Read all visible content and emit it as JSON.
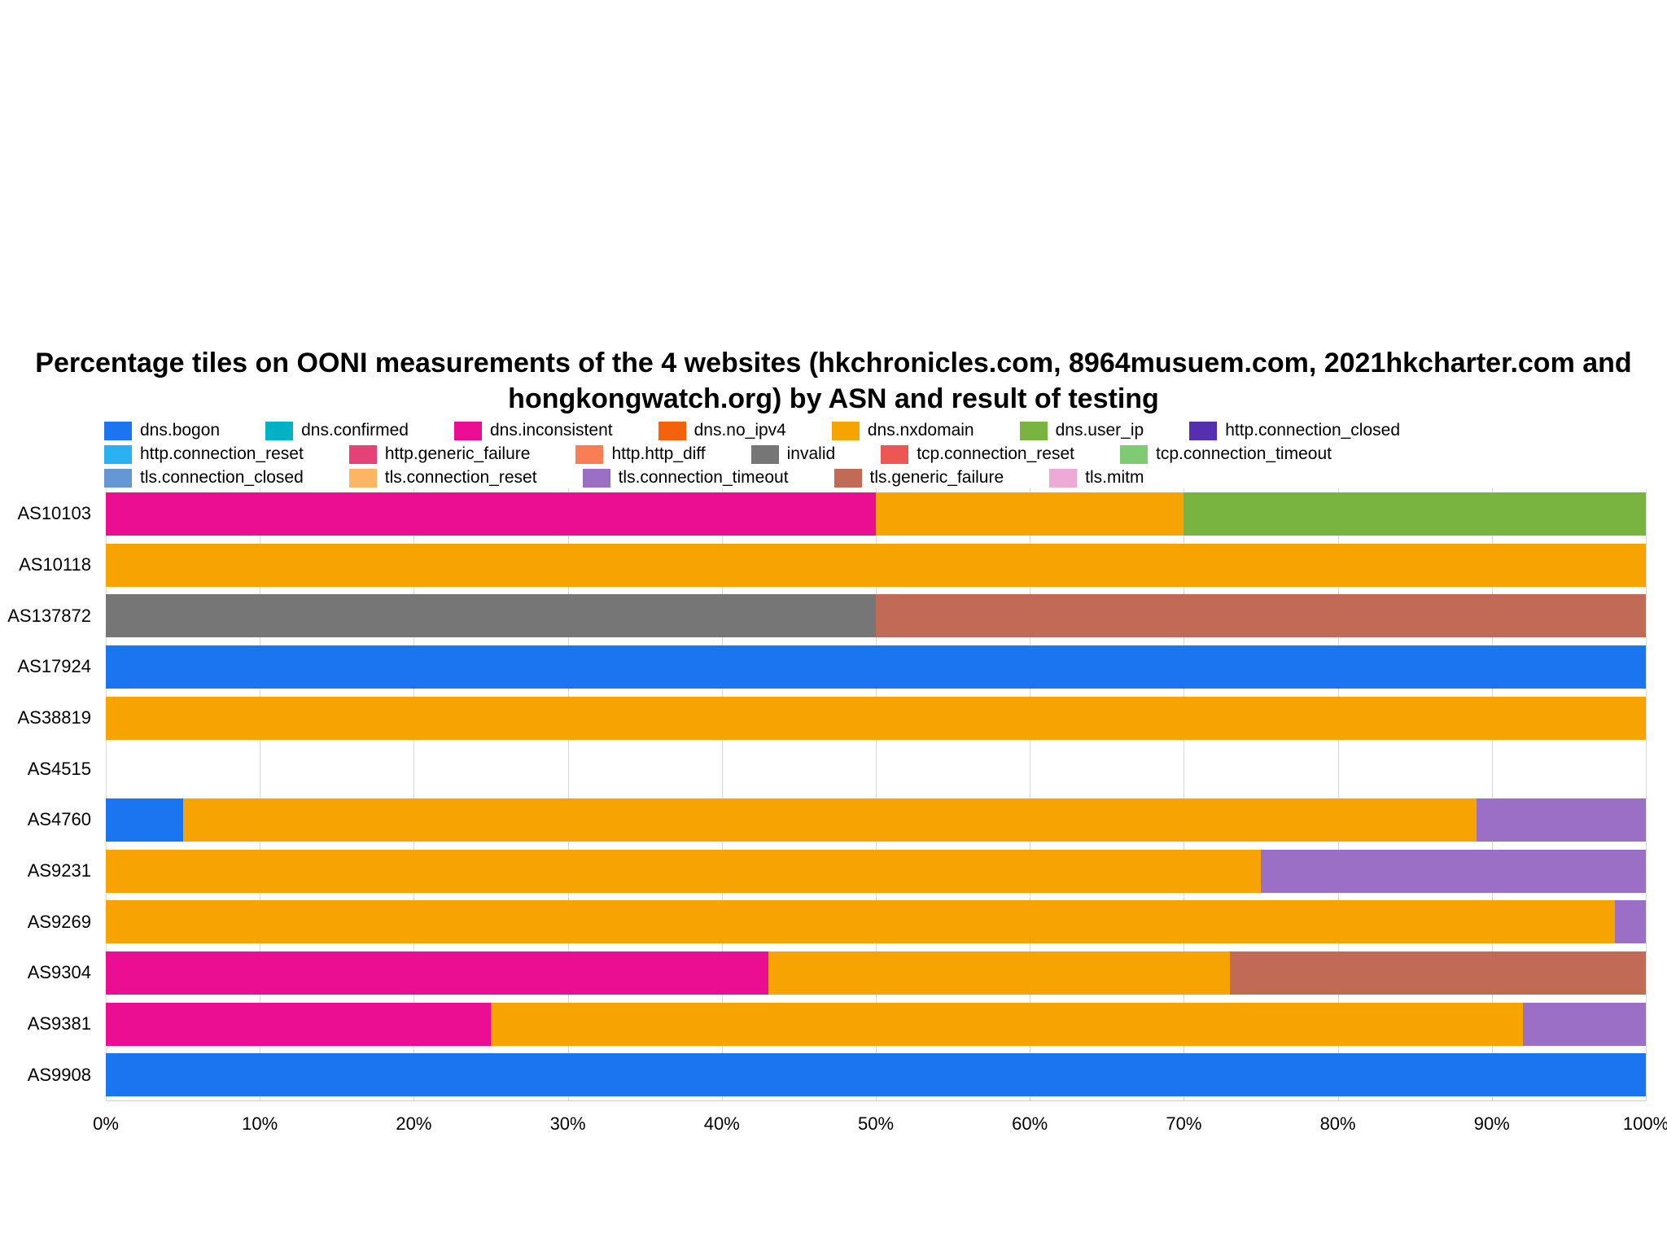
{
  "chart_data": {
    "type": "bar",
    "orientation": "horizontal",
    "stacked": true,
    "title": "Percentage tiles on OONI measurements of the 4 websites (hkchronicles.com, 8964musuem.com,  2021hkcharter.com and hongkongwatch.org) by ASN and result of testing",
    "title_lines": [
      "Percentage tiles on OONI measurements of the 4 websites (hkchronicles.com, 8964musuem.com,  2021hkcharter.com and",
      "hongkongwatch.org) by ASN and result of testing"
    ],
    "xlabel": "",
    "ylabel": "",
    "xlim": [
      0,
      100
    ],
    "grid": true,
    "legend_position": "top",
    "x_ticks": [
      "0%",
      "10%",
      "20%",
      "30%",
      "40%",
      "50%",
      "60%",
      "70%",
      "80%",
      "90%",
      "100%"
    ],
    "legend_rows": [
      [
        "dns.bogon",
        "dns.confirmed",
        "dns.inconsistent",
        "dns.no_ipv4",
        "dns.nxdomain",
        "dns.user_ip",
        "http.connection_closed"
      ],
      [
        "http.connection_reset",
        "http.generic_failure",
        "http.http_diff",
        "invalid",
        "tcp.connection_reset",
        "tcp.connection_timeout"
      ],
      [
        "tls.connection_closed",
        "tls.connection_reset",
        "tls.connection_timeout",
        "tls.generic_failure",
        "tls.mitm"
      ]
    ],
    "palette": {
      "dns.bogon": "#1b75f0",
      "dns.confirmed": "#00b2c3",
      "dns.inconsistent": "#eb0e92",
      "dns.no_ipv4": "#f4620b",
      "dns.nxdomain": "#f7a402",
      "dns.user_ip": "#79b441",
      "http.connection_closed": "#5430ae",
      "http.connection_reset": "#29b2f2",
      "http.generic_failure": "#e64277",
      "http.http_diff": "#f97d55",
      "invalid": "#767676",
      "tcp.connection_reset": "#ec5653",
      "tcp.connection_timeout": "#7ecb74",
      "tls.connection_closed": "#6497d3",
      "tls.connection_reset": "#fbb563",
      "tls.connection_timeout": "#9c6fc6",
      "tls.generic_failure": "#c16a55",
      "tls.mitm": "#edaad6"
    },
    "categories": [
      "AS10103",
      "AS10118",
      "AS137872",
      "AS17924",
      "AS38819",
      "AS4515",
      "AS4760",
      "AS9231",
      "AS9269",
      "AS9304",
      "AS9381",
      "AS9908"
    ],
    "series_by_category": [
      {
        "category": "AS10103",
        "segments": [
          {
            "key": "dns.inconsistent",
            "value": 50
          },
          {
            "key": "dns.nxdomain",
            "value": 20
          },
          {
            "key": "dns.user_ip",
            "value": 30
          }
        ]
      },
      {
        "category": "AS10118",
        "segments": [
          {
            "key": "dns.nxdomain",
            "value": 100
          }
        ]
      },
      {
        "category": "AS137872",
        "segments": [
          {
            "key": "invalid",
            "value": 50
          },
          {
            "key": "tls.generic_failure",
            "value": 50
          }
        ]
      },
      {
        "category": "AS17924",
        "segments": [
          {
            "key": "dns.bogon",
            "value": 100
          }
        ]
      },
      {
        "category": "AS38819",
        "segments": [
          {
            "key": "dns.nxdomain",
            "value": 100
          }
        ]
      },
      {
        "category": "AS4515",
        "segments": []
      },
      {
        "category": "AS4760",
        "segments": [
          {
            "key": "dns.bogon",
            "value": 5
          },
          {
            "key": "dns.nxdomain",
            "value": 84
          },
          {
            "key": "tls.connection_timeout",
            "value": 11
          }
        ]
      },
      {
        "category": "AS9231",
        "segments": [
          {
            "key": "dns.nxdomain",
            "value": 75
          },
          {
            "key": "tls.connection_timeout",
            "value": 25
          }
        ]
      },
      {
        "category": "AS9269",
        "segments": [
          {
            "key": "dns.nxdomain",
            "value": 98
          },
          {
            "key": "tls.connection_timeout",
            "value": 2
          }
        ]
      },
      {
        "category": "AS9304",
        "segments": [
          {
            "key": "dns.inconsistent",
            "value": 43
          },
          {
            "key": "dns.nxdomain",
            "value": 30
          },
          {
            "key": "tls.generic_failure",
            "value": 27
          }
        ]
      },
      {
        "category": "AS9381",
        "segments": [
          {
            "key": "dns.inconsistent",
            "value": 25
          },
          {
            "key": "dns.nxdomain",
            "value": 67
          },
          {
            "key": "tls.connection_timeout",
            "value": 8
          }
        ]
      },
      {
        "category": "AS9908",
        "segments": [
          {
            "key": "dns.bogon",
            "value": 100
          }
        ]
      }
    ]
  }
}
